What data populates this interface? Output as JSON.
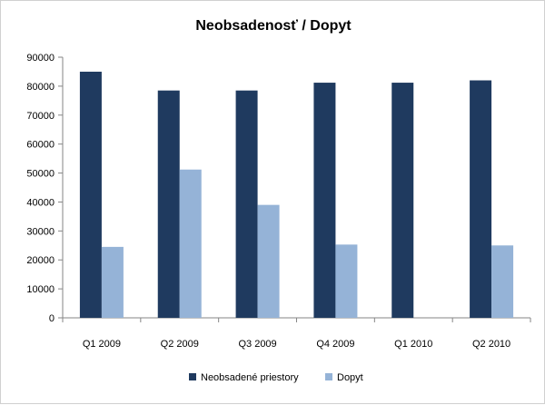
{
  "chart_data": {
    "type": "bar",
    "title": "Neobsadenosť / Dopyt",
    "xlabel": "",
    "ylabel": "",
    "categories": [
      "Q1 2009",
      "Q2 2009",
      "Q3 2009",
      "Q4 2009",
      "Q1 2010",
      "Q2 2010"
    ],
    "series": [
      {
        "name": "Neobsadené priestory",
        "color": "#1f3a5f",
        "values": [
          85000,
          78500,
          78500,
          81200,
          81200,
          82000
        ]
      },
      {
        "name": "Dopyt",
        "color": "#95b3d7",
        "values": [
          24500,
          51200,
          39000,
          25300,
          null,
          25000
        ]
      }
    ],
    "ylim": [
      0,
      90000
    ],
    "yticks": [
      "0",
      "10000",
      "20000",
      "30000",
      "40000",
      "50000",
      "60000",
      "70000",
      "80000",
      "90000"
    ],
    "grid": false,
    "legend_position": "bottom"
  }
}
